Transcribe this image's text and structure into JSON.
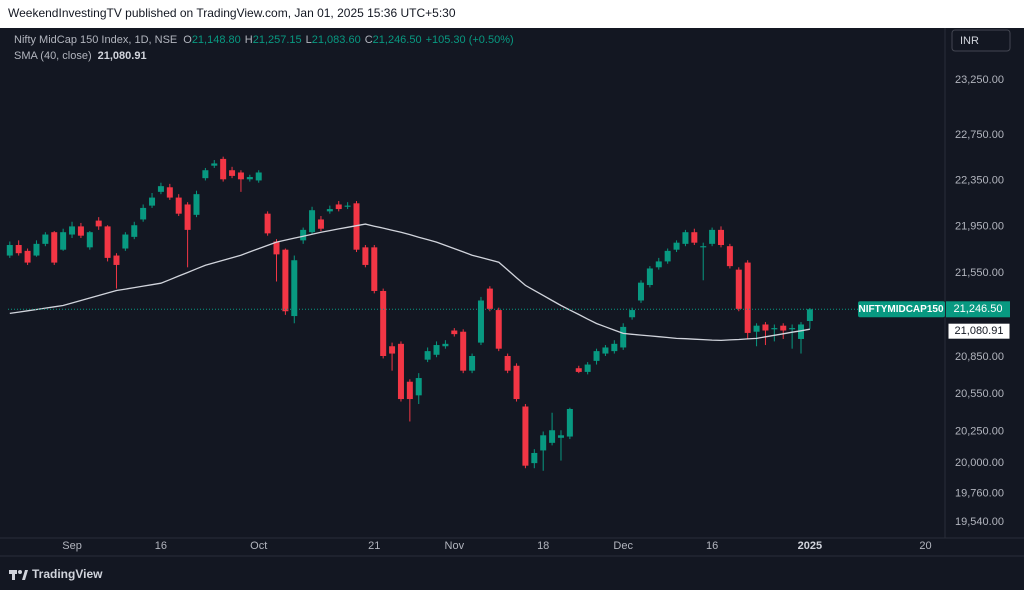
{
  "header": {
    "publisher": "WeekendInvestingTV published on TradingView.com, Jan 01, 2025 15:36 UTC+5:30",
    "symbol": "Nifty MidCap 150 Index, 1D, NSE",
    "ohlc_keys": [
      "O",
      "H",
      "L",
      "C"
    ],
    "change": "+105.30 (+0.50%)",
    "currency": "INR"
  },
  "footer": {
    "brand": "TradingView"
  },
  "chart_data": {
    "type": "candlestick",
    "log_scale": true,
    "grid": false,
    "up_color": "#089981",
    "down_color": "#f23645",
    "categories": [
      null,
      null,
      null,
      null,
      null,
      null,
      null,
      "Sep",
      null,
      null,
      null,
      null,
      null,
      null,
      null,
      null,
      null,
      "16",
      null,
      null,
      null,
      null,
      null,
      null,
      null,
      null,
      null,
      null,
      "Oct",
      null,
      null,
      null,
      null,
      null,
      null,
      null,
      null,
      null,
      null,
      null,
      null,
      "21",
      null,
      null,
      null,
      null,
      null,
      null,
      null,
      null,
      "Nov",
      null,
      null,
      null,
      null,
      null,
      null,
      null,
      null,
      null,
      "18",
      null,
      null,
      null,
      null,
      null,
      null,
      null,
      null,
      "Dec",
      null,
      null,
      null,
      null,
      null,
      null,
      null,
      null,
      null,
      "16",
      null,
      null,
      null,
      null,
      null,
      null,
      null,
      null,
      null,
      null,
      "2025",
      null,
      null,
      null,
      null,
      null,
      null,
      null,
      null,
      null,
      null,
      null,
      null,
      "20",
      null
    ],
    "open": [
      21700,
      21790,
      21740,
      21700,
      21800,
      21900,
      21750,
      21880,
      21950,
      21770,
      22000,
      21950,
      21700,
      21760,
      21860,
      22010,
      22130,
      22250,
      22290,
      22200,
      22140,
      22050,
      22370,
      22480,
      22540,
      22440,
      22420,
      22360,
      22350,
      22060,
      21820,
      21750,
      21190,
      21830,
      21900,
      22010,
      22080,
      22140,
      22120,
      22150,
      21770,
      21770,
      21400,
      20940,
      20960,
      20650,
      20540,
      20830,
      20870,
      20940,
      21070,
      21060,
      20740,
      20970,
      21420,
      21240,
      20860,
      20780,
      20450,
      20000,
      20100,
      20160,
      20200,
      20210,
      20760,
      20730,
      20820,
      20880,
      20900,
      20930,
      21180,
      21320,
      21450,
      21600,
      21650,
      21750,
      21800,
      21900,
      21770,
      21800,
      21920,
      21780,
      21580,
      21640,
      21060,
      21120,
      21080,
      21110,
      21080,
      21000,
      21148.8,
      null,
      null,
      null,
      null,
      null,
      null,
      null,
      null,
      null,
      null,
      null,
      null,
      null,
      null
    ],
    "high": [
      21820,
      21830,
      21760,
      21830,
      21900,
      21910,
      21930,
      21990,
      21980,
      21910,
      22030,
      21960,
      21720,
      21900,
      21990,
      22140,
      22240,
      22330,
      22320,
      22230,
      22160,
      22260,
      22460,
      22530,
      22560,
      22470,
      22440,
      22400,
      22440,
      22080,
      21840,
      21760,
      21700,
      21940,
      22120,
      22040,
      22130,
      22170,
      22160,
      22170,
      21790,
      21790,
      21420,
      20970,
      20980,
      20670,
      20720,
      20930,
      20980,
      20990,
      21090,
      21080,
      20880,
      21350,
      21440,
      21260,
      20880,
      20800,
      20470,
      20110,
      20250,
      20400,
      20260,
      20440,
      20780,
      20810,
      20920,
      20950,
      20990,
      21130,
      21260,
      21490,
      21610,
      21680,
      21760,
      21830,
      21920,
      21930,
      21810,
      21940,
      21950,
      21800,
      21600,
      21660,
      21130,
      21140,
      21120,
      21130,
      21120,
      21140,
      21257.15,
      null,
      null,
      null,
      null,
      null,
      null,
      null,
      null,
      null,
      null,
      null,
      null,
      null,
      null
    ],
    "low": [
      21680,
      21700,
      21620,
      21690,
      21780,
      21620,
      21740,
      21850,
      21850,
      21750,
      21920,
      21650,
      21420,
      21740,
      21840,
      21990,
      22110,
      22230,
      22180,
      22040,
      21600,
      22030,
      22350,
      22460,
      22340,
      22370,
      22250,
      22340,
      22330,
      21870,
      21480,
      21200,
      21130,
      21800,
      21880,
      21910,
      22060,
      22080,
      22100,
      21730,
      21600,
      21380,
      20840,
      20740,
      20490,
      20330,
      20470,
      20810,
      20850,
      20920,
      21020,
      20720,
      20720,
      20950,
      21230,
      20900,
      20720,
      20490,
      19960,
      19960,
      19940,
      20140,
      20020,
      20190,
      20720,
      20710,
      20790,
      20860,
      20880,
      20910,
      21160,
      21300,
      21430,
      21580,
      21630,
      21730,
      21780,
      21790,
      21490,
      21780,
      21770,
      21590,
      21230,
      21000,
      20940,
      20950,
      20980,
      21000,
      20920,
      20880,
      21083.6,
      null,
      null,
      null,
      null,
      null,
      null,
      null,
      null,
      null,
      null,
      null,
      null,
      null,
      null
    ],
    "close": [
      21790,
      21720,
      21640,
      21800,
      21880,
      21640,
      21900,
      21950,
      21870,
      21900,
      21950,
      21680,
      21620,
      21880,
      21960,
      22110,
      22200,
      22300,
      22200,
      22060,
      21920,
      22230,
      22440,
      22500,
      22360,
      22390,
      22360,
      22380,
      22420,
      21890,
      21710,
      21230,
      21660,
      21920,
      22090,
      21930,
      22100,
      22100,
      22130,
      21750,
      21620,
      21400,
      20860,
      20880,
      20510,
      20510,
      20680,
      20900,
      20950,
      20960,
      21040,
      20740,
      20860,
      21320,
      21250,
      20920,
      20740,
      20510,
      19980,
      20080,
      20220,
      20260,
      20220,
      20430,
      20730,
      20790,
      20900,
      20930,
      20960,
      21100,
      21240,
      21470,
      21590,
      21650,
      21740,
      21810,
      21900,
      21810,
      21780,
      21920,
      21790,
      21610,
      21250,
      21050,
      21110,
      21070,
      21090,
      21070,
      21090,
      21120,
      21246.5,
      null,
      null,
      null,
      null,
      null,
      null,
      null,
      null,
      null,
      null,
      null,
      null,
      null,
      null
    ],
    "last_labels": {
      "open": "21,148.80",
      "high": "21,257.15",
      "low": "21,083.60",
      "close": "21,246.50"
    },
    "price_tag": "NIFTYMIDCAP150",
    "indicator": {
      "name": "SMA (40, close)",
      "color": "#d1d4dc",
      "last_label": "21,080.91",
      "values": [
        21212,
        21223,
        21234,
        21245,
        21256,
        21267,
        21278,
        21299,
        21320,
        21341,
        21362,
        21383,
        21404,
        21416,
        21428,
        21441,
        21453,
        21465,
        21495,
        21526,
        21556,
        21587,
        21617,
        21639,
        21660,
        21682,
        21703,
        21731,
        21759,
        21787,
        21815,
        21832,
        21849,
        21866,
        21883,
        21900,
        21914,
        21928,
        21942,
        21956,
        21970,
        21952,
        21935,
        21917,
        21900,
        21879,
        21857,
        21836,
        21815,
        21787,
        21759,
        21731,
        21703,
        21683,
        21663,
        21643,
        21578,
        21512,
        21447,
        21405,
        21363,
        21320,
        21278,
        21240,
        21203,
        21165,
        21128,
        21101,
        21073,
        21046,
        21039,
        21032,
        21025,
        21019,
        21012,
        21005,
        21002,
        20998,
        20995,
        20991,
        20988,
        20992,
        20996,
        21001,
        21005,
        21018,
        21030,
        21043,
        21056,
        21068,
        21080.91,
        null,
        null,
        null,
        null,
        null,
        null,
        null,
        null,
        null,
        null,
        null,
        null,
        null,
        null
      ]
    },
    "ylim": [
      19420,
      23730
    ],
    "yticks": [
      {
        "value": 23250,
        "label": "23,250.00"
      },
      {
        "value": 22750,
        "label": "22,750.00"
      },
      {
        "value": 22350,
        "label": "22,350.00"
      },
      {
        "value": 21950,
        "label": "21,950.00"
      },
      {
        "value": 21550,
        "label": "21,550.00"
      },
      {
        "value": 20850,
        "label": "20,850.00"
      },
      {
        "value": 20550,
        "label": "20,550.00"
      },
      {
        "value": 20250,
        "label": "20,250.00"
      },
      {
        "value": 20000,
        "label": "20,000.00"
      },
      {
        "value": 19760,
        "label": "19,760.00"
      },
      {
        "value": 19540,
        "label": "19,540.00"
      }
    ]
  }
}
